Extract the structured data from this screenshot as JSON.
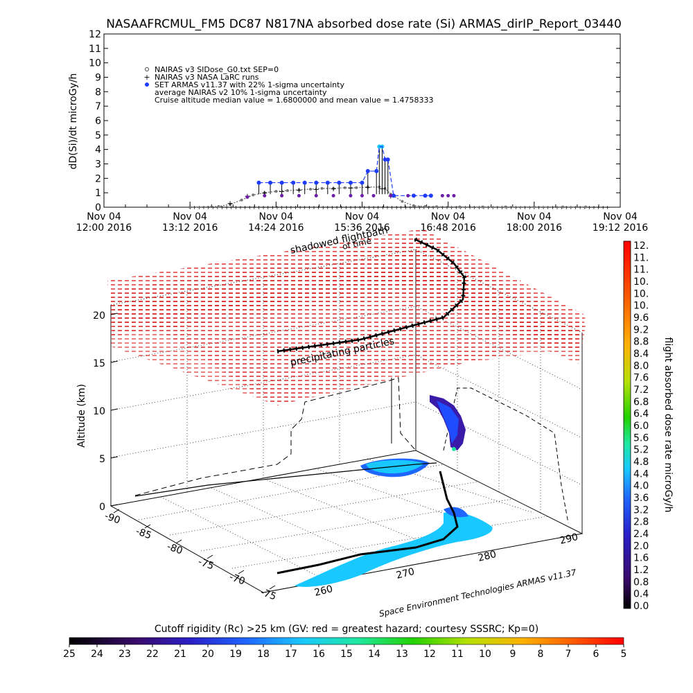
{
  "header": {
    "title": "NASAAFRCMUL_FM5 DC87 N817NA absorbed dose rate (Si) ARMAS_dirIP_Report_03440"
  },
  "colors": {
    "set_armas": "#1f3cff",
    "nairas_v3_sidose": "#777777",
    "nairas_v3_larc": "#000000",
    "nairas_v2": "#6b1fa8",
    "shadowed_flightpath": "#d81b1b",
    "ground_track": "#26d3e8"
  },
  "chart_data": [
    {
      "type": "scatter",
      "ylabel": "dD(Si)/dt microGy/h",
      "ylim": [
        0,
        12
      ],
      "y_ticks": [
        "0",
        "1",
        "2",
        "3",
        "4",
        "5",
        "6",
        "7",
        "8",
        "9",
        "10",
        "11",
        "12"
      ],
      "x_ticks": [
        {
          "top": "Nov 04",
          "bottom": "12:00 2016"
        },
        {
          "top": "Nov 04",
          "bottom": "13:12 2016"
        },
        {
          "top": "Nov 04",
          "bottom": "14:24 2016"
        },
        {
          "top": "Nov 04",
          "bottom": "15:36 2016"
        },
        {
          "top": "Nov 04",
          "bottom": "16:48 2016"
        },
        {
          "top": "Nov 04",
          "bottom": "18:00 2016"
        },
        {
          "top": "Nov 04",
          "bottom": "19:12 2016"
        }
      ],
      "legend": [
        "NAIRAS v3 SIDose_G0.txt SEP=0",
        "NAIRAS v3 NASA LaRC runs",
        "SET ARMAS v11.37 with 22% 1-sigma uncertainty",
        "average NAIRAS v2 10% 1-sigma uncertainty",
        "Cruise altitude median value = 1.6800000 and mean value = 1.4758333"
      ],
      "series": [
        {
          "name": "NAIRAS v3 SIDose_G0.txt SEP=0",
          "x": [
            12.5,
            13.0,
            13.2,
            13.4,
            13.6,
            13.8,
            14.0,
            14.2,
            14.4,
            14.6,
            14.8,
            15.0,
            15.2,
            15.4,
            15.6,
            15.8,
            15.9,
            16.0,
            16.2,
            16.4,
            16.6,
            16.8,
            17.2,
            17.6,
            18.0,
            18.5,
            19.0,
            19.4
          ],
          "y": [
            0.0,
            0.05,
            0.2,
            0.5,
            0.85,
            1.0,
            1.1,
            1.15,
            1.2,
            1.25,
            1.3,
            1.3,
            1.35,
            1.35,
            1.4,
            1.4,
            1.3,
            0.9,
            0.4,
            0.1,
            0.05,
            0.03,
            0.02,
            0.02,
            0.02,
            0.02,
            0.02,
            0.02
          ]
        },
        {
          "name": "NAIRAS v3 NASA LaRC runs",
          "x": [
            13.2,
            13.5,
            13.8,
            14.1,
            14.4,
            14.7,
            15.0,
            15.3,
            15.6,
            15.85,
            16.0
          ],
          "y": [
            0.3,
            0.8,
            1.0,
            1.1,
            1.2,
            1.25,
            1.3,
            1.35,
            1.4,
            1.3,
            0.8
          ]
        },
        {
          "name": "SET ARMAS v11.37 with 22% 1-sigma uncertainty",
          "x": [
            13.7,
            13.9,
            14.1,
            14.3,
            14.5,
            14.7,
            14.9,
            15.1,
            15.3,
            15.5,
            15.6,
            15.75,
            15.8,
            15.85,
            15.9,
            15.95,
            16.05,
            16.4,
            16.6,
            16.7
          ],
          "y": [
            1.7,
            1.7,
            1.7,
            1.7,
            1.7,
            1.7,
            1.7,
            1.7,
            1.7,
            1.7,
            2.5,
            2.5,
            4.2,
            4.2,
            3.3,
            3.3,
            0.8,
            0.8,
            0.8,
            0.8
          ]
        },
        {
          "name": "average NAIRAS v2 10% 1-sigma uncertainty",
          "x": [
            13.5,
            13.8,
            14.1,
            14.4,
            14.7,
            15.0,
            15.3,
            15.5,
            15.7,
            16.0,
            16.3,
            16.9,
            17.0,
            17.1
          ],
          "y": [
            0.7,
            0.8,
            0.8,
            0.8,
            0.8,
            0.8,
            0.8,
            0.8,
            0.8,
            0.8,
            0.8,
            0.8,
            0.8,
            0.8
          ]
        }
      ]
    },
    {
      "type": "scatter",
      "title": "shadowed flightpath",
      "subtitle": "of time",
      "annotation": "precipitating particles",
      "zlabel": "Altitude (km)",
      "z_ticks": [
        "0",
        "5",
        "10",
        "15",
        "20"
      ],
      "lat_ticks": [
        "-90",
        "-85",
        "-80",
        "-75",
        "-70",
        "-75"
      ],
      "lon_ticks": [
        "260",
        "270",
        "280",
        "290"
      ],
      "colorbar_label": "flight absorbed dose rate microGy/h",
      "colorbar_ticks": [
        "12.",
        "11.",
        "11.",
        "10.",
        "10.",
        "10.",
        "9.6",
        "9.2",
        "8.8",
        "8.4",
        "8.0",
        "7.6",
        "7.2",
        "6.8",
        "6.4",
        "6.0",
        "5.6",
        "5.2",
        "4.8",
        "4.4",
        "4.0",
        "3.6",
        "3.2",
        "2.8",
        "2.4",
        "2.0",
        "1.6",
        "1.2",
        "0.8",
        "0.4",
        "0.0"
      ],
      "credit": "Space Environment Technologies ARMAS v11.37"
    },
    {
      "type": "heatmap",
      "title": "Cutoff rigidity (Rc) >25 km (GV: red = greatest hazard; courtesy SSSRC; Kp=0)",
      "ticks": [
        "25",
        "24",
        "23",
        "22",
        "21",
        "20",
        "19",
        "18",
        "17",
        "16",
        "15",
        "14",
        "13",
        "12",
        "11",
        "10",
        "9",
        "8",
        "7",
        "6",
        "5"
      ]
    }
  ]
}
